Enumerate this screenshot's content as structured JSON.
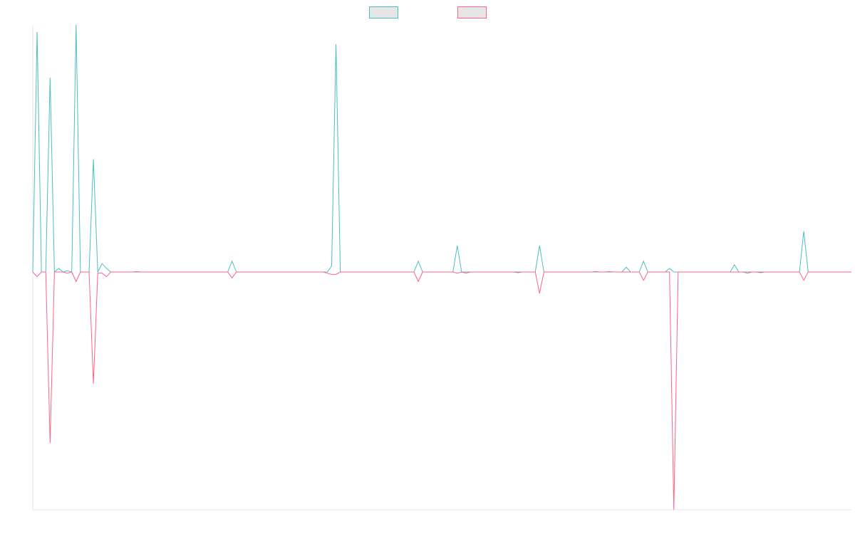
{
  "chart_data": {
    "type": "line",
    "title": "",
    "xlabel": "",
    "ylabel": "",
    "grid": false,
    "legend_placement": "top-center",
    "ylim": [
      -1,
      1
    ],
    "series": [
      {
        "name": "",
        "color": "#4bc0c0",
        "legend_fill": "#e6e6e6",
        "values": [
          0,
          1,
          0,
          0,
          0.81,
          0,
          0.015,
          0,
          0.005,
          0,
          1.03,
          0,
          0,
          0,
          0.47,
          0,
          0.035,
          0.015,
          0,
          0,
          0,
          0,
          0,
          0,
          0,
          0,
          0,
          0,
          0,
          0,
          0,
          0,
          0,
          0,
          0,
          0,
          0,
          0,
          0,
          0,
          0,
          0,
          0,
          0,
          0,
          0,
          0.045,
          0,
          0,
          0,
          0,
          0,
          0,
          0,
          0,
          0,
          0,
          0,
          0,
          0,
          0,
          0,
          0,
          0,
          0,
          0,
          0,
          0,
          0,
          0.025,
          0.95,
          0,
          0,
          0,
          0,
          0,
          0,
          0,
          0,
          0,
          0,
          0,
          0,
          0,
          0,
          0,
          0,
          0,
          0,
          0.045,
          0,
          0,
          0,
          0,
          0,
          0,
          0,
          0,
          0.11,
          0,
          0,
          0,
          0,
          0,
          0,
          0,
          0,
          0,
          0,
          0,
          0,
          0,
          0,
          0,
          0,
          0,
          0,
          0.11,
          0,
          0,
          0,
          0,
          0,
          0,
          0,
          0,
          0,
          0,
          0,
          0,
          0,
          0,
          0,
          0,
          0,
          0,
          0,
          0.02,
          0,
          0,
          0,
          0.045,
          0,
          0,
          0,
          0,
          0,
          0.015,
          0,
          0,
          0,
          0,
          0,
          0,
          0,
          0,
          0,
          0,
          0,
          0,
          0,
          0,
          0.03,
          0,
          0,
          0,
          0,
          0,
          0,
          0,
          0,
          0,
          0,
          0,
          0,
          0,
          0,
          0,
          0.17,
          0,
          0,
          0,
          0,
          0,
          0,
          0,
          0,
          0,
          0,
          0
        ]
      },
      {
        "name": "",
        "color": "#ff6384",
        "legend_fill": "#e6e6e6",
        "values": [
          0,
          -0.02,
          0,
          0,
          -0.72,
          0,
          0,
          0,
          -0.005,
          0,
          -0.04,
          0,
          0,
          0,
          -0.47,
          -0.005,
          -0.005,
          -0.02,
          0,
          0,
          0,
          0,
          0,
          0,
          0.002,
          0,
          0,
          0,
          0,
          0,
          0,
          0,
          0,
          0,
          0,
          0,
          0,
          0,
          0,
          0,
          0,
          0,
          0,
          0,
          0,
          0,
          -0.025,
          0,
          0,
          0,
          0,
          0,
          0,
          0,
          0,
          0,
          0,
          0,
          0,
          0,
          0,
          0,
          0,
          0,
          0,
          0,
          0,
          0,
          -0.005,
          -0.01,
          -0.01,
          0,
          0,
          0,
          0,
          0,
          0,
          0,
          0,
          0,
          0,
          0,
          0,
          0,
          0,
          0,
          0,
          0,
          0,
          -0.04,
          0,
          0,
          0,
          0,
          0,
          0,
          0,
          0,
          -0.005,
          0,
          -0.005,
          0,
          0,
          0,
          0,
          0,
          0,
          0,
          0,
          0,
          0,
          0,
          -0.003,
          0,
          0,
          0,
          0,
          -0.09,
          0,
          0,
          0,
          0,
          0,
          0,
          0,
          0,
          0,
          0,
          0,
          0,
          0.002,
          0,
          0,
          0.002,
          0,
          0,
          0,
          0,
          0,
          0,
          0,
          -0.035,
          0,
          0,
          0,
          0,
          0,
          0,
          -1.0,
          0,
          0,
          0,
          0,
          0,
          0,
          0,
          0,
          0,
          0,
          0,
          0,
          0,
          0,
          0,
          0,
          -0.005,
          0,
          0,
          -0.003,
          0,
          0,
          0,
          0,
          0,
          0,
          0,
          0,
          0,
          -0.035,
          0,
          0,
          0,
          0,
          0,
          0,
          0,
          0,
          0,
          0,
          0
        ]
      }
    ],
    "x": [
      0,
      1,
      2,
      3,
      4,
      5,
      6,
      7,
      8,
      9,
      10,
      11,
      12,
      13,
      14,
      15,
      16,
      17,
      18,
      19,
      20,
      21,
      22,
      23,
      24,
      25,
      26,
      27,
      28,
      29,
      30,
      31,
      32,
      33,
      34,
      35,
      36,
      37,
      38,
      39,
      40,
      41,
      42,
      43,
      44,
      45,
      46,
      47,
      48,
      49,
      50,
      51,
      52,
      53,
      54,
      55,
      56,
      57,
      58,
      59,
      60,
      61,
      62,
      63,
      64,
      65,
      66,
      67,
      68,
      69,
      70,
      71,
      72,
      73,
      74,
      75,
      76,
      77,
      78,
      79,
      80,
      81,
      82,
      83,
      84,
      85,
      86,
      87,
      88,
      89,
      90,
      91,
      92,
      93,
      94,
      95,
      96,
      97,
      98,
      99,
      100,
      101,
      102,
      103,
      104,
      105,
      106,
      107,
      108,
      109,
      110,
      111,
      112,
      113,
      114,
      115,
      116,
      117,
      118,
      119,
      120,
      121,
      122,
      123,
      124,
      125,
      126,
      127,
      128,
      129,
      130,
      131,
      132,
      133,
      134,
      135,
      136,
      137,
      138,
      139,
      140,
      141,
      142,
      143,
      144,
      145,
      146,
      147,
      148,
      149,
      150,
      151,
      152,
      153,
      154,
      155,
      156,
      157,
      158,
      159,
      160,
      161,
      162,
      163,
      164,
      165,
      166,
      167,
      168,
      169,
      170,
      171,
      172,
      173,
      174,
      175,
      176,
      177,
      178,
      179,
      180,
      181,
      182,
      183,
      184,
      185,
      186,
      187,
      188,
      189
    ]
  }
}
